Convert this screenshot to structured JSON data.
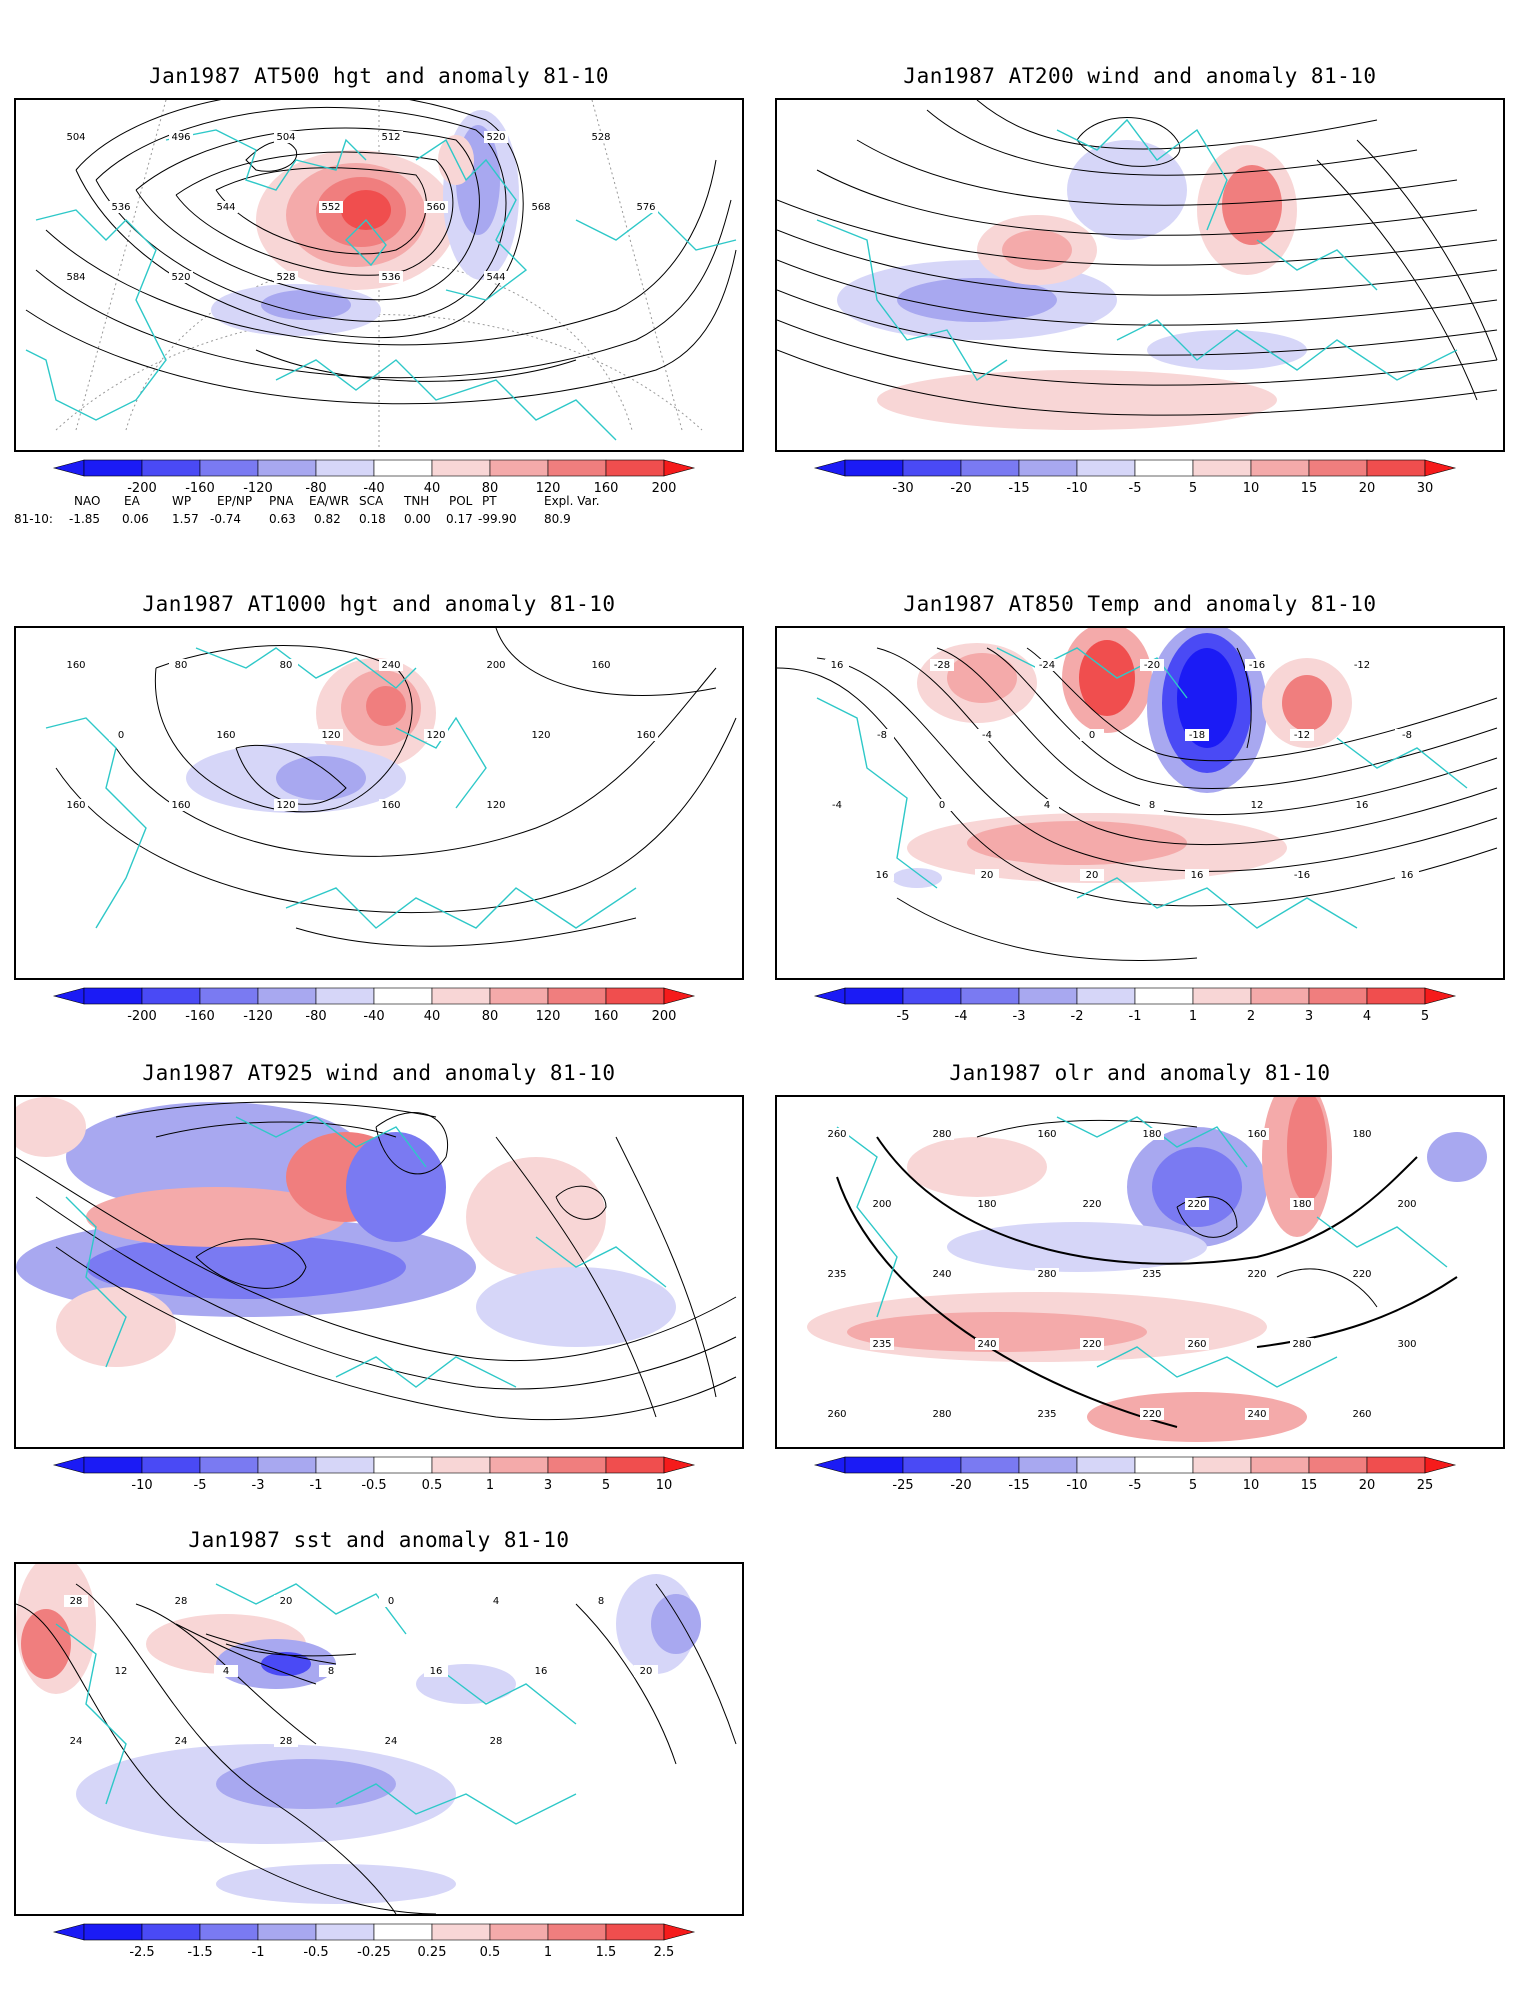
{
  "panels": [
    {
      "title": "Jan1987 AT500 hgt and anomaly 81-10",
      "scale": [
        "-200",
        "-160",
        "-120",
        "-80",
        "-40",
        "40",
        "80",
        "120",
        "160",
        "200"
      ],
      "contour_labels": [
        "504",
        "496",
        "504",
        "512",
        "520",
        "528",
        "536",
        "544",
        "552",
        "560",
        "568",
        "576",
        "584",
        "520",
        "528",
        "536",
        "544"
      ]
    },
    {
      "title": "Jan1987 AT200 wind and anomaly 81-10",
      "scale": [
        "-30",
        "-20",
        "-15",
        "-10",
        "-5",
        "5",
        "10",
        "15",
        "20",
        "30"
      ],
      "contour_labels": []
    },
    {
      "title": "Jan1987 AT1000 hgt and anomaly 81-10",
      "scale": [
        "-200",
        "-160",
        "-120",
        "-80",
        "-40",
        "40",
        "80",
        "120",
        "160",
        "200"
      ],
      "contour_labels": [
        "160",
        "80",
        "80",
        "240",
        "200",
        "160",
        "0",
        "160",
        "120",
        "120",
        "120",
        "160",
        "160",
        "160",
        "120",
        "160",
        "120"
      ]
    },
    {
      "title": "Jan1987 AT850 Temp and anomaly 81-10",
      "scale": [
        "-5",
        "-4",
        "-3",
        "-2",
        "-1",
        "1",
        "2",
        "3",
        "4",
        "5"
      ],
      "contour_labels": [
        "16",
        "-28",
        "-24",
        "-20",
        "-16",
        "-12",
        "-8",
        "-4",
        "0",
        "-18",
        "-12",
        "-8",
        "-4",
        "0",
        "4",
        "8",
        "12",
        "16",
        "16",
        "20",
        "20",
        "16",
        "-16",
        "16"
      ]
    },
    {
      "title": "Jan1987 AT925 wind and anomaly 81-10",
      "scale": [
        "-10",
        "-5",
        "-3",
        "-1",
        "-0.5",
        "0.5",
        "1",
        "3",
        "5",
        "10"
      ],
      "contour_labels": []
    },
    {
      "title": "Jan1987 olr and anomaly 81-10",
      "scale": [
        "-25",
        "-20",
        "-15",
        "-10",
        "-5",
        "5",
        "10",
        "15",
        "20",
        "25"
      ],
      "contour_labels": [
        "260",
        "280",
        "160",
        "180",
        "160",
        "180",
        "200",
        "180",
        "220",
        "220",
        "180",
        "200",
        "235",
        "240",
        "280",
        "235",
        "220",
        "220",
        "235",
        "240",
        "220",
        "260",
        "280",
        "300",
        "260",
        "280",
        "235",
        "220",
        "240",
        "260",
        "280",
        "235",
        "240",
        "260"
      ]
    },
    {
      "title": "Jan1987 sst and anomaly 81-10",
      "scale": [
        "-2.5",
        "-1.5",
        "-1",
        "-0.5",
        "-0.25",
        "0.25",
        "0.5",
        "1",
        "1.5",
        "2.5"
      ],
      "contour_labels": [
        "28",
        "28",
        "20",
        "0",
        "4",
        "8",
        "12",
        "4",
        "8",
        "16",
        "16",
        "20",
        "24",
        "24",
        "28",
        "24",
        "28"
      ]
    }
  ],
  "indices": {
    "headers": [
      "NAO",
      "EA",
      "WP",
      "EP/NP",
      "PNA",
      "EA/WR",
      "SCA",
      "TNH",
      "POL",
      "PT",
      "Expl. Var."
    ],
    "row_label": "81-10:",
    "values": [
      "-1.85",
      "0.06",
      "1.57",
      "-0.74",
      "0.63",
      "0.82",
      "0.18",
      "0.00",
      "0.17",
      "-99.90",
      "80.9"
    ]
  },
  "colors": {
    "coast": "#2ec8c8",
    "blue": [
      "#1b1bf5",
      "#4a4af5",
      "#7a7af2",
      "#a8a8f0",
      "#d6d6f8"
    ],
    "red": [
      "#f8d6d6",
      "#f4aaaa",
      "#f07e7e",
      "#f04e4e",
      "#f51b1b"
    ]
  }
}
